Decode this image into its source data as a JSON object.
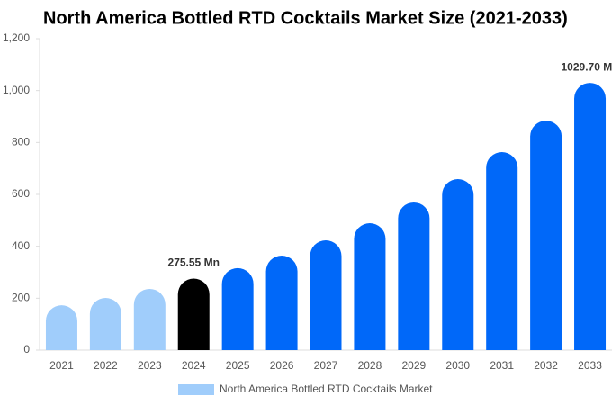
{
  "chart_data": {
    "type": "bar",
    "title": "North America Bottled RTD Cocktails Market Size (2021-2033)",
    "categories": [
      "2021",
      "2022",
      "2023",
      "2024",
      "2025",
      "2026",
      "2027",
      "2028",
      "2029",
      "2030",
      "2031",
      "2032",
      "2033"
    ],
    "series": [
      {
        "name": "North America Bottled RTD Cocktails Market",
        "color": "#a0cdfb",
        "values": [
          173,
          201,
          236,
          275.55,
          316,
          364,
          423,
          489,
          569,
          659,
          763,
          884,
          1029.7
        ],
        "value_labels": [
          null,
          null,
          null,
          "275.55 Mn",
          null,
          null,
          null,
          null,
          null,
          null,
          null,
          null,
          "1029.70 Mn"
        ],
        "colors": [
          "#a0cdfb",
          "#a0cdfb",
          "#a0cdfb",
          "#000000",
          "#0068f9",
          "#0068f9",
          "#0068f9",
          "#0068f9",
          "#0068f9",
          "#0068f9",
          "#0068f9",
          "#0068f9",
          "#0068f9"
        ]
      }
    ],
    "ylim": [
      0,
      1200
    ],
    "yticks": [
      0,
      200,
      400,
      600,
      800,
      {
        "value": 1000,
        "label": "1,000"
      },
      {
        "value": 1200,
        "label": "1,200"
      }
    ],
    "grid": false
  }
}
